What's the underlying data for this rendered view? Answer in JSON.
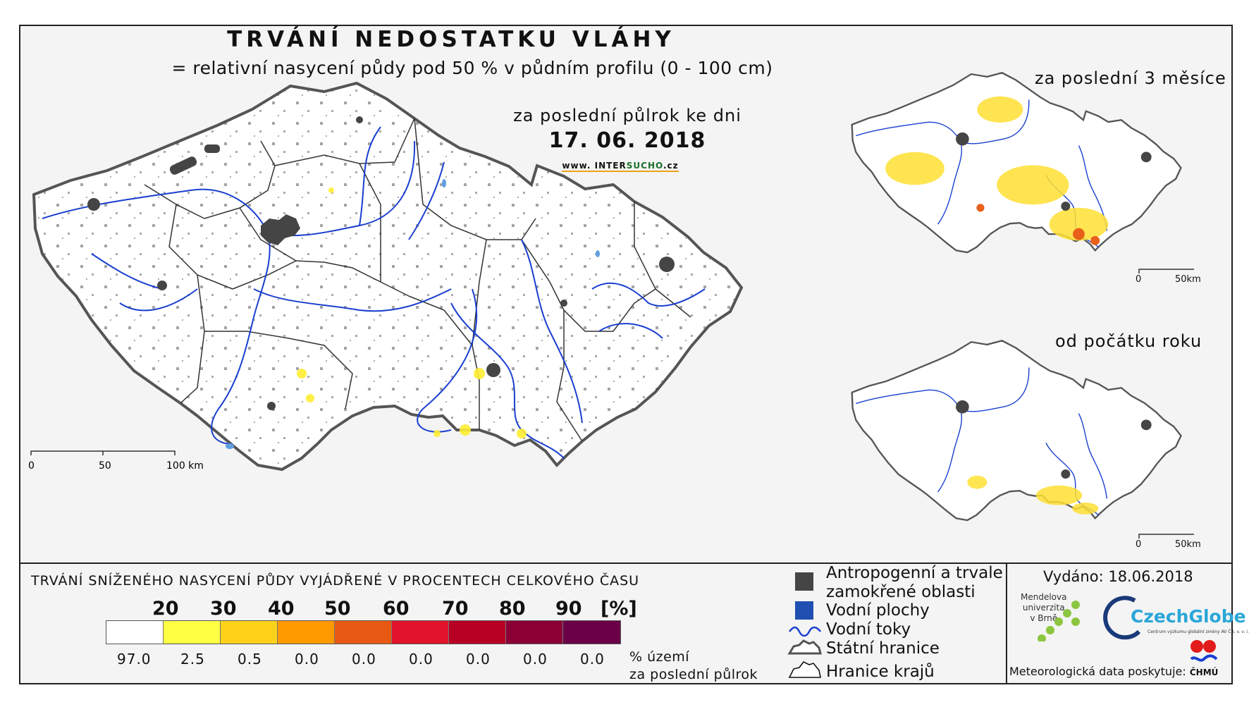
{
  "header": {
    "title": "TRVÁNÍ NEDOSTATKU VLÁHY",
    "subtitle": "= relativní nasycení půdy pod 50 % v půdním profilu (0 - 100 cm)",
    "period": "za poslední půlrok ke dni",
    "date": "17. 06. 2018",
    "website_prefix": "www. INTER",
    "website_mid": "SUCHO",
    "website_suffix": ".cz"
  },
  "main_map": {
    "scale": {
      "ticks": [
        "0",
        "50",
        "100 km"
      ]
    }
  },
  "inset_3m": {
    "title": "za poslední 3 měsíce",
    "scale": {
      "ticks": [
        "0",
        "50km"
      ]
    }
  },
  "inset_ytd": {
    "title": "od počátku roku",
    "scale": {
      "ticks": [
        "0",
        "50km"
      ]
    }
  },
  "legend": {
    "title": "TRVÁNÍ SNÍŽENÉHO NASYCENÍ PŮDY VYJÁDŘENÉ V PROCENTECH CELKOVÉHO ČASU",
    "thresholds": [
      "20",
      "30",
      "40",
      "50",
      "60",
      "70",
      "80",
      "90"
    ],
    "unit": "[%]",
    "colors": [
      "#ffffff",
      "#ffff44",
      "#ffd21a",
      "#ff9900",
      "#e85a14",
      "#e0142a",
      "#b80025",
      "#8c0036",
      "#6b0048"
    ],
    "area_percents": [
      "97.0",
      "2.5",
      "0.5",
      "0.0",
      "0.0",
      "0.0",
      "0.0",
      "0.0",
      "0.0"
    ],
    "area_label_line1": "% území",
    "area_label_line2": "za poslední půlrok"
  },
  "map_key": {
    "urban_line1": "Antropogenní a trvale",
    "urban_line2": "zamokřené oblasti",
    "water_bodies": "Vodní plochy",
    "rivers": "Vodní toky",
    "state_border": "Státní hranice",
    "region_border": "Hranice krajů",
    "urban_color": "#454545",
    "water_color": "#1f4fb0",
    "river_color": "#1a3fd0"
  },
  "footer": {
    "issued": "Vydáno: 18.06.2018",
    "mendel_line1": "Mendelova",
    "mendel_line2": "univerzita",
    "mendel_line3": "v Brně",
    "czechglobe": "CzechGlobe",
    "czechglobe_sub": "Centrum výzkumu globální změny AV ČR, v. v. i.",
    "data_provider": "Meteorologická data poskytuje:",
    "chmu": "ČHMÚ"
  }
}
